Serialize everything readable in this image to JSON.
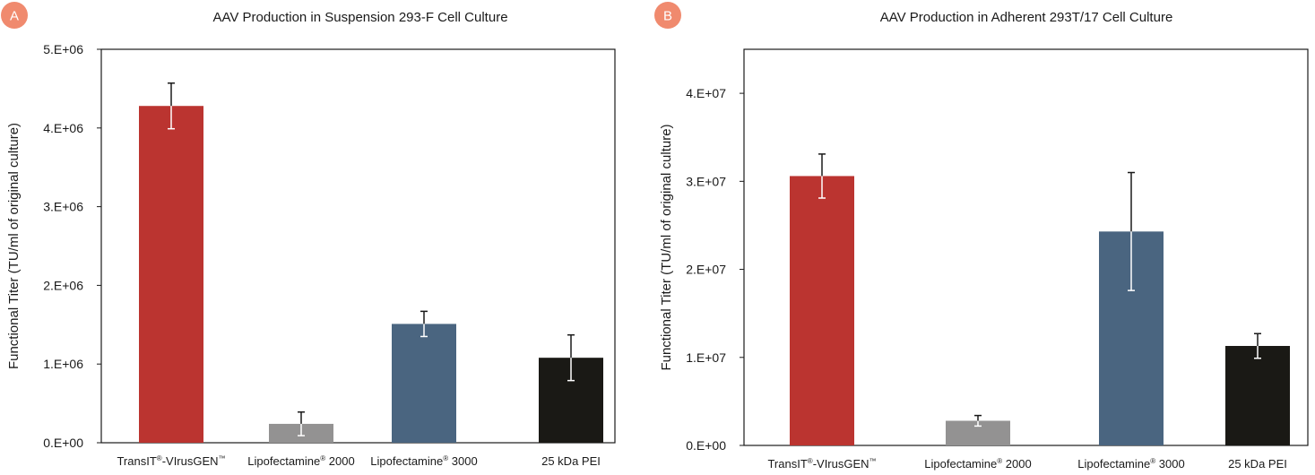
{
  "chart_data": [
    {
      "panel": "A",
      "type": "bar",
      "title": "AAV Production in Suspension 293-F Cell Culture",
      "ylabel": "Functional  Titer (TU/ml of original culture)",
      "xlabel": "",
      "ylim": [
        0,
        5000000
      ],
      "yticks": [
        0,
        1000000,
        2000000,
        3000000,
        4000000,
        5000000
      ],
      "ytick_labels": [
        "0.E+00",
        "1.E+06",
        "2.E+06",
        "3.E+06",
        "4.E+06",
        "5.E+06"
      ],
      "categories": [
        {
          "name": "TransIT",
          "sup1": "®",
          "mid": "-VIrusGEN",
          "sup2": "™"
        },
        {
          "name": "Lipofectamine",
          "sup1": "®",
          "mid": " 2000",
          "sup2": ""
        },
        {
          "name": "Lipofectamine",
          "sup1": "®",
          "mid": " 3000",
          "sup2": ""
        },
        {
          "name": "25 kDa PEI",
          "sup1": "",
          "mid": "",
          "sup2": ""
        }
      ],
      "values": [
        4280000,
        240000,
        1510000,
        1080000
      ],
      "errors": [
        290000,
        150000,
        160000,
        290000
      ],
      "colors": [
        "#bb3430",
        "#939292",
        "#4a6580",
        "#1a1915"
      ]
    },
    {
      "panel": "B",
      "type": "bar",
      "title": "AAV Production in Adherent 293T/17 Cell Culture",
      "ylabel": "Functional  Titer (TU/ml of original culture)",
      "xlabel": "",
      "ylim": [
        0,
        45000000
      ],
      "yticks": [
        0,
        10000000,
        20000000,
        30000000,
        40000000
      ],
      "ytick_labels": [
        "0.E+00",
        "1.E+07",
        "2.E+07",
        "3.E+07",
        "4.E+07"
      ],
      "categories": [
        {
          "name": "TransIT",
          "sup1": "®",
          "mid": "-VIrusGEN",
          "sup2": "™"
        },
        {
          "name": "Lipofectamine",
          "sup1": "®",
          "mid": " 2000",
          "sup2": ""
        },
        {
          "name": "Lipofectamine",
          "sup1": "®",
          "mid": " 3000",
          "sup2": ""
        },
        {
          "name": "25 kDa PEI",
          "sup1": "",
          "mid": "",
          "sup2": ""
        }
      ],
      "values": [
        30600000,
        2800000,
        24300000,
        11300000
      ],
      "errors": [
        2500000,
        600000,
        6700000,
        1400000
      ],
      "colors": [
        "#bb3430",
        "#939292",
        "#4a6580",
        "#1a1915"
      ]
    }
  ],
  "badge_color": "#f08a6e"
}
